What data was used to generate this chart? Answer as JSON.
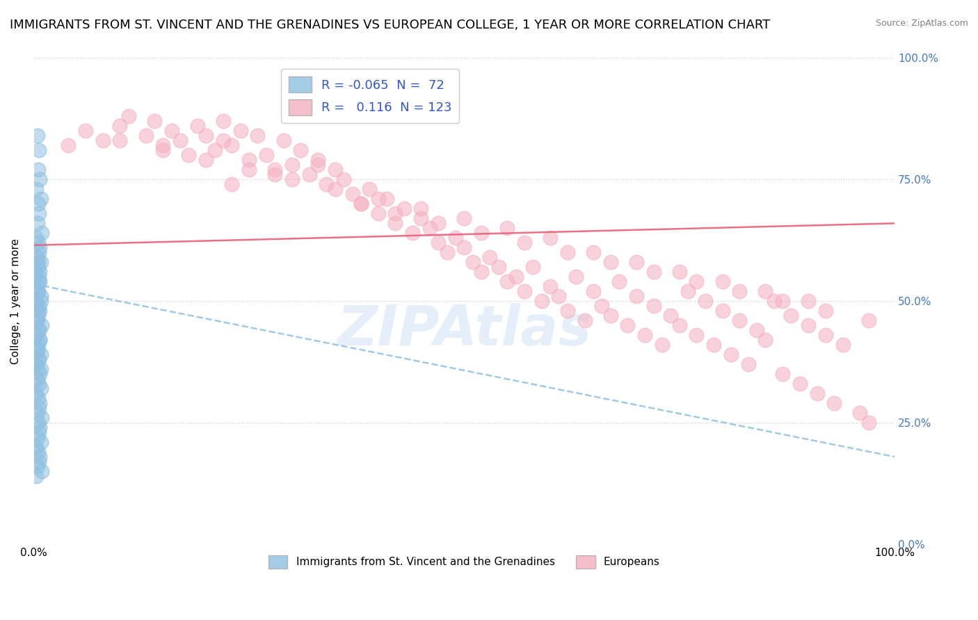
{
  "title": "IMMIGRANTS FROM ST. VINCENT AND THE GRENADINES VS EUROPEAN COLLEGE, 1 YEAR OR MORE CORRELATION CHART",
  "source": "Source: ZipAtlas.com",
  "ylabel": "College, 1 year or more",
  "xlim": [
    0.0,
    1.0
  ],
  "ylim": [
    0.0,
    1.0
  ],
  "ytick_positions": [
    0.0,
    0.25,
    0.5,
    0.75,
    1.0
  ],
  "ytick_labels_right": [
    "0.0%",
    "25.0%",
    "50.0%",
    "75.0%",
    "100.0%"
  ],
  "blue_R": "-0.065",
  "blue_N": 72,
  "pink_R": "0.116",
  "pink_N": 123,
  "legend_label_blue": "Immigrants from St. Vincent and the Grenadines",
  "legend_label_pink": "Europeans",
  "blue_color": "#8ec0e0",
  "pink_color": "#f5b0c0",
  "blue_line_color": "#8ec0e0",
  "pink_line_color": "#e8607a",
  "background_color": "#ffffff",
  "grid_color": "#cccccc",
  "title_fontsize": 13,
  "axis_label_fontsize": 11,
  "tick_fontsize": 11,
  "right_ytick_color": "#4477cc",
  "blue_scatter_x": [
    0.004,
    0.006,
    0.005,
    0.007,
    0.003,
    0.008,
    0.005,
    0.006,
    0.004,
    0.009,
    0.003,
    0.005,
    0.007,
    0.006,
    0.004,
    0.008,
    0.005,
    0.003,
    0.006,
    0.007,
    0.004,
    0.005,
    0.008,
    0.003,
    0.006,
    0.007,
    0.005,
    0.004,
    0.009,
    0.006,
    0.003,
    0.007,
    0.005,
    0.004,
    0.008,
    0.006,
    0.003,
    0.005,
    0.007,
    0.004,
    0.006,
    0.008,
    0.003,
    0.005,
    0.007,
    0.006,
    0.004,
    0.009,
    0.005,
    0.007,
    0.006,
    0.004,
    0.008,
    0.003,
    0.005,
    0.007,
    0.006,
    0.004,
    0.009,
    0.003,
    0.005,
    0.007,
    0.006,
    0.004,
    0.008,
    0.005,
    0.003,
    0.006,
    0.007,
    0.004,
    0.005,
    0.008
  ],
  "blue_scatter_y": [
    0.84,
    0.81,
    0.77,
    0.75,
    0.73,
    0.71,
    0.7,
    0.68,
    0.66,
    0.64,
    0.63,
    0.62,
    0.61,
    0.6,
    0.59,
    0.58,
    0.57,
    0.56,
    0.55,
    0.54,
    0.53,
    0.52,
    0.51,
    0.5,
    0.49,
    0.48,
    0.47,
    0.46,
    0.45,
    0.44,
    0.43,
    0.42,
    0.41,
    0.4,
    0.39,
    0.38,
    0.37,
    0.36,
    0.35,
    0.34,
    0.33,
    0.32,
    0.31,
    0.3,
    0.29,
    0.28,
    0.27,
    0.26,
    0.25,
    0.24,
    0.23,
    0.22,
    0.21,
    0.2,
    0.19,
    0.18,
    0.17,
    0.16,
    0.15,
    0.14,
    0.58,
    0.56,
    0.54,
    0.52,
    0.5,
    0.48,
    0.46,
    0.44,
    0.42,
    0.4,
    0.38,
    0.36
  ],
  "pink_scatter_x": [
    0.04,
    0.06,
    0.08,
    0.1,
    0.11,
    0.13,
    0.14,
    0.15,
    0.16,
    0.17,
    0.18,
    0.19,
    0.2,
    0.21,
    0.22,
    0.22,
    0.23,
    0.24,
    0.25,
    0.26,
    0.27,
    0.28,
    0.29,
    0.3,
    0.31,
    0.32,
    0.33,
    0.34,
    0.35,
    0.36,
    0.37,
    0.38,
    0.39,
    0.4,
    0.41,
    0.42,
    0.43,
    0.44,
    0.45,
    0.46,
    0.47,
    0.48,
    0.49,
    0.5,
    0.51,
    0.52,
    0.53,
    0.54,
    0.55,
    0.56,
    0.57,
    0.58,
    0.59,
    0.6,
    0.61,
    0.62,
    0.63,
    0.64,
    0.65,
    0.66,
    0.67,
    0.68,
    0.69,
    0.7,
    0.71,
    0.72,
    0.73,
    0.74,
    0.75,
    0.76,
    0.77,
    0.78,
    0.79,
    0.8,
    0.81,
    0.82,
    0.83,
    0.84,
    0.85,
    0.86,
    0.87,
    0.88,
    0.89,
    0.9,
    0.91,
    0.92,
    0.93,
    0.94,
    0.6,
    0.65,
    0.7,
    0.75,
    0.8,
    0.85,
    0.9,
    0.55,
    0.5,
    0.45,
    0.4,
    0.35,
    0.3,
    0.25,
    0.2,
    0.96,
    0.97,
    0.15,
    0.1,
    0.38,
    0.42,
    0.47,
    0.52,
    0.57,
    0.62,
    0.67,
    0.72,
    0.77,
    0.82,
    0.87,
    0.92,
    0.97,
    0.33,
    0.28,
    0.23
  ],
  "pink_scatter_y": [
    0.82,
    0.85,
    0.83,
    0.86,
    0.88,
    0.84,
    0.87,
    0.82,
    0.85,
    0.83,
    0.8,
    0.86,
    0.84,
    0.81,
    0.83,
    0.87,
    0.82,
    0.85,
    0.79,
    0.84,
    0.8,
    0.77,
    0.83,
    0.78,
    0.81,
    0.76,
    0.79,
    0.74,
    0.77,
    0.75,
    0.72,
    0.7,
    0.73,
    0.68,
    0.71,
    0.66,
    0.69,
    0.64,
    0.67,
    0.65,
    0.62,
    0.6,
    0.63,
    0.61,
    0.58,
    0.56,
    0.59,
    0.57,
    0.54,
    0.55,
    0.52,
    0.57,
    0.5,
    0.53,
    0.51,
    0.48,
    0.55,
    0.46,
    0.52,
    0.49,
    0.47,
    0.54,
    0.45,
    0.51,
    0.43,
    0.49,
    0.41,
    0.47,
    0.45,
    0.52,
    0.43,
    0.5,
    0.41,
    0.48,
    0.39,
    0.46,
    0.37,
    0.44,
    0.42,
    0.5,
    0.35,
    0.47,
    0.33,
    0.45,
    0.31,
    0.43,
    0.29,
    0.41,
    0.63,
    0.6,
    0.58,
    0.56,
    0.54,
    0.52,
    0.5,
    0.65,
    0.67,
    0.69,
    0.71,
    0.73,
    0.75,
    0.77,
    0.79,
    0.27,
    0.25,
    0.81,
    0.83,
    0.7,
    0.68,
    0.66,
    0.64,
    0.62,
    0.6,
    0.58,
    0.56,
    0.54,
    0.52,
    0.5,
    0.48,
    0.46,
    0.78,
    0.76,
    0.74
  ],
  "blue_line_x": [
    0.0,
    1.0
  ],
  "blue_line_y": [
    0.535,
    0.18
  ],
  "pink_line_x": [
    0.0,
    1.0
  ],
  "pink_line_y": [
    0.615,
    0.66
  ]
}
